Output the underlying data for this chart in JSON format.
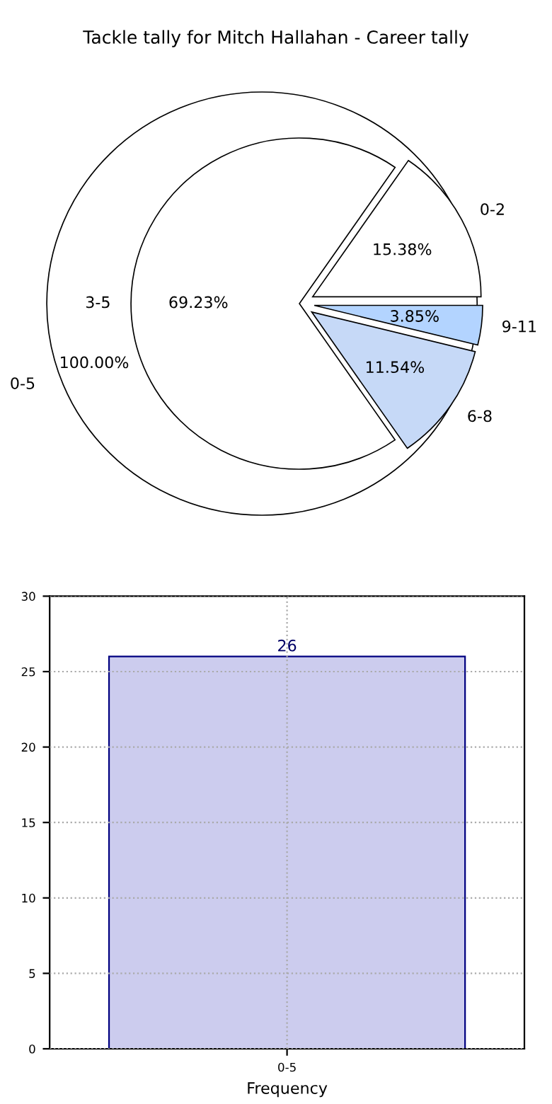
{
  "chart_data": [
    {
      "type": "pie",
      "title": "Tackle tally for Mitch Hallahan - Career tally",
      "categories": [
        "0-2",
        "3-5",
        "6-8",
        "9-11"
      ],
      "values": [
        15.38,
        69.23,
        11.54,
        3.85
      ],
      "colors": [
        "#ffffff",
        "#ffffff",
        "#c6d9f7",
        "#b3d4ff"
      ],
      "value_labels": [
        "15.38%",
        "69.23%",
        "11.54%",
        "3.85%"
      ]
    },
    {
      "type": "pie",
      "categories": [
        "0-5"
      ],
      "values": [
        100.0
      ],
      "colors": [
        "#ffffff"
      ],
      "value_labels": [
        "100.00%"
      ]
    },
    {
      "type": "bar",
      "categories": [
        "0-5"
      ],
      "values": [
        26
      ],
      "color": "#ccccee",
      "xlabel": "Frequency",
      "ylim": [
        0,
        30
      ],
      "yticks": [
        0,
        5,
        10,
        15,
        20,
        25,
        30
      ],
      "grid": true,
      "data_labels": true
    }
  ]
}
